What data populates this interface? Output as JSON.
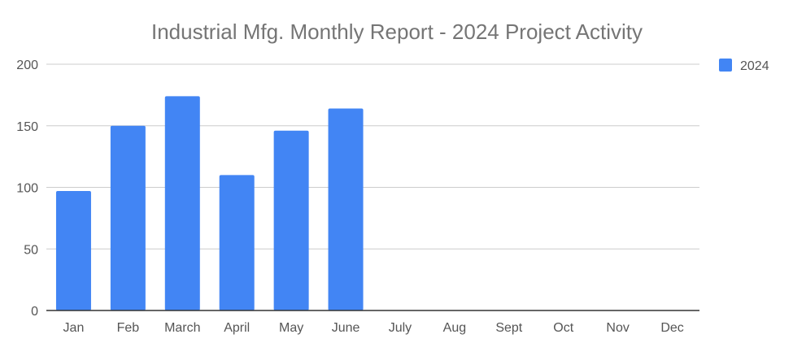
{
  "chart_data": {
    "type": "bar",
    "title": "Industrial Mfg. Monthly Report - 2024 Project Activity",
    "xlabel": "",
    "ylabel": "",
    "categories": [
      "Jan",
      "Feb",
      "March",
      "April",
      "May",
      "June",
      "July",
      "Aug",
      "Sept",
      "Oct",
      "Nov",
      "Dec"
    ],
    "series": [
      {
        "name": "2024",
        "color": "#4285f4",
        "values": [
          97,
          150,
          174,
          110,
          146,
          164,
          null,
          null,
          null,
          null,
          null,
          null
        ]
      }
    ],
    "ylim": [
      0,
      200
    ],
    "yticks": [
      0,
      50,
      100,
      150,
      200
    ],
    "grid": true,
    "legend_position": "right"
  }
}
